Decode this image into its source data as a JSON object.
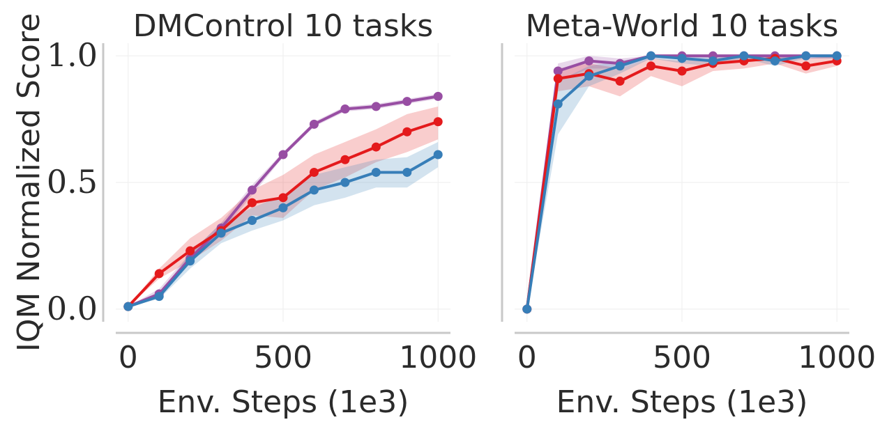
{
  "ylabel": "IQM Normalized Score",
  "colors": {
    "purple": "#984ea3",
    "red": "#e41a1c",
    "blue": "#377eb8",
    "grid": "#eeeeee",
    "spine": "#c8c8c8"
  },
  "chart_data": [
    {
      "type": "line",
      "title": "DMControl 10 tasks",
      "xlabel": "Env. Steps (1e3)",
      "ylabel": "IQM Normalized Score",
      "x": [
        0,
        100,
        200,
        300,
        400,
        500,
        600,
        700,
        800,
        900,
        1000
      ],
      "xlim": [
        -40,
        1040
      ],
      "ylim": [
        -0.05,
        1.05
      ],
      "xticks": [
        0,
        500,
        1000
      ],
      "xtick_labels": [
        "0",
        "500",
        "1000"
      ],
      "yticks": [
        0,
        0.5,
        1
      ],
      "ytick_labels": [
        "0.0",
        "0.5",
        "1.0"
      ],
      "grid": true,
      "series": [
        {
          "name": "purple",
          "color": "#984ea3",
          "values": [
            0.01,
            0.06,
            0.2,
            0.32,
            0.47,
            0.61,
            0.73,
            0.79,
            0.8,
            0.82,
            0.84
          ],
          "lower": [
            0.01,
            0.05,
            0.18,
            0.3,
            0.45,
            0.6,
            0.72,
            0.78,
            0.79,
            0.81,
            0.83
          ],
          "upper": [
            0.01,
            0.08,
            0.22,
            0.34,
            0.49,
            0.62,
            0.74,
            0.8,
            0.81,
            0.83,
            0.85
          ]
        },
        {
          "name": "red",
          "color": "#e41a1c",
          "values": [
            0.01,
            0.14,
            0.23,
            0.31,
            0.42,
            0.44,
            0.54,
            0.59,
            0.64,
            0.7,
            0.74
          ],
          "lower": [
            0.01,
            0.12,
            0.19,
            0.27,
            0.37,
            0.36,
            0.47,
            0.52,
            0.58,
            0.62,
            0.67
          ],
          "upper": [
            0.01,
            0.16,
            0.28,
            0.36,
            0.47,
            0.53,
            0.61,
            0.66,
            0.71,
            0.77,
            0.8
          ]
        },
        {
          "name": "blue",
          "color": "#377eb8",
          "values": [
            0.01,
            0.05,
            0.19,
            0.3,
            0.35,
            0.4,
            0.47,
            0.5,
            0.54,
            0.54,
            0.61
          ],
          "lower": [
            0.01,
            0.04,
            0.16,
            0.26,
            0.31,
            0.35,
            0.41,
            0.44,
            0.48,
            0.48,
            0.56
          ],
          "upper": [
            0.01,
            0.06,
            0.22,
            0.34,
            0.4,
            0.45,
            0.53,
            0.56,
            0.59,
            0.6,
            0.66
          ]
        }
      ]
    },
    {
      "type": "line",
      "title": "Meta-World 10 tasks",
      "xlabel": "Env. Steps (1e3)",
      "ylabel": "",
      "x": [
        0,
        100,
        200,
        300,
        400,
        500,
        600,
        700,
        800,
        900,
        1000
      ],
      "xlim": [
        -40,
        1040
      ],
      "ylim": [
        -0.05,
        1.05
      ],
      "xticks": [
        0,
        500,
        1000
      ],
      "xtick_labels": [
        "0",
        "500",
        "1000"
      ],
      "yticks": [
        0,
        0.5,
        1
      ],
      "ytick_labels": [],
      "grid": true,
      "series": [
        {
          "name": "purple",
          "color": "#984ea3",
          "values": [
            0.0,
            0.94,
            0.98,
            0.97,
            1.0,
            1.0,
            1.0,
            1.0,
            1.0,
            1.0,
            1.0
          ],
          "lower": [
            0.0,
            0.9,
            0.95,
            0.95,
            0.99,
            0.99,
            0.99,
            0.99,
            0.99,
            0.99,
            0.99
          ],
          "upper": [
            0.0,
            0.97,
            1.0,
            0.99,
            1.0,
            1.0,
            1.0,
            1.0,
            1.0,
            1.0,
            1.0
          ]
        },
        {
          "name": "red",
          "color": "#e41a1c",
          "values": [
            0.0,
            0.91,
            0.93,
            0.9,
            0.96,
            0.94,
            0.97,
            0.98,
            0.99,
            0.96,
            0.98
          ],
          "lower": [
            0.0,
            0.86,
            0.88,
            0.84,
            0.92,
            0.88,
            0.94,
            0.95,
            0.97,
            0.93,
            0.96
          ],
          "upper": [
            0.0,
            0.95,
            0.97,
            0.95,
            0.99,
            0.98,
            0.99,
            1.0,
            1.0,
            0.99,
            1.0
          ]
        },
        {
          "name": "blue",
          "color": "#377eb8",
          "values": [
            0.0,
            0.81,
            0.92,
            0.96,
            1.0,
            0.99,
            0.98,
            1.0,
            0.98,
            1.0,
            1.0
          ],
          "lower": [
            0.0,
            0.69,
            0.88,
            0.93,
            0.99,
            0.97,
            0.96,
            0.99,
            0.96,
            0.99,
            0.99
          ],
          "upper": [
            0.0,
            0.9,
            0.96,
            0.98,
            1.0,
            1.0,
            1.0,
            1.0,
            1.0,
            1.0,
            1.0
          ]
        }
      ]
    }
  ]
}
